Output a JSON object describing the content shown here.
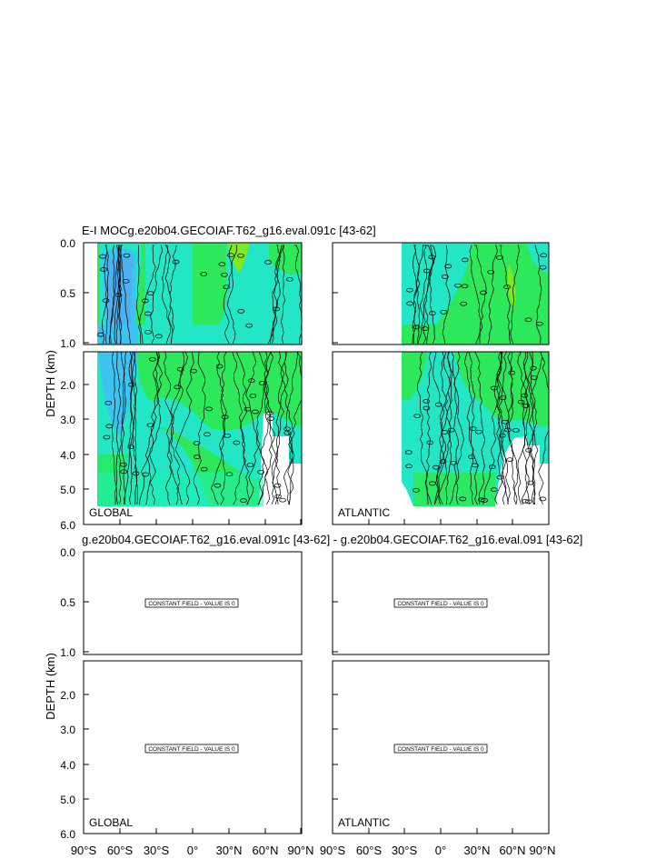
{
  "chart_data": [
    {
      "type": "heatmap",
      "title": "E-I MOCg.e20b04.GECOIAF.T62_g16.eval.091c [43-62]",
      "ylabel": "DEPTH (km)",
      "panels": [
        {
          "label": "GLOBAL",
          "x_range": [
            -90,
            90
          ],
          "data_x_range": [
            -78,
            90
          ],
          "constant": false
        },
        {
          "label": "ATLANTIC",
          "x_range": [
            -90,
            90
          ],
          "data_x_range": [
            -34,
            90
          ],
          "constant": false
        }
      ],
      "y_upper_ticks": [
        "0.0",
        "0.5",
        "1.0"
      ],
      "y_upper_values": [
        0.0,
        0.5,
        1.0
      ],
      "y_lower_ticks": [
        "2.0",
        "3.0",
        "4.0",
        "5.0",
        "6.0"
      ],
      "y_lower_values": [
        2.0,
        3.0,
        4.0,
        5.0,
        6.0
      ],
      "colors": {
        "blue": "#3ec3f0",
        "cyan": "#22e6c6",
        "teal": "#1ff0b0",
        "green": "#2ce85a",
        "yellow_green": "#7fe81e"
      }
    },
    {
      "type": "heatmap",
      "title": "g.e20b04.GECOIAF.T62_g16.eval.091c [43-62] - g.e20b04.GECOIAF.T62_g16.eval.091 [43-62]",
      "ylabel": "DEPTH (km)",
      "panels": [
        {
          "label": "GLOBAL",
          "constant": true,
          "message": "CONSTANT FIELD - VALUE IS 0"
        },
        {
          "label": "ATLANTIC",
          "constant": true,
          "message": "CONSTANT FIELD - VALUE IS 0"
        }
      ],
      "y_upper_ticks": [
        "0.0",
        "0.5",
        "1.0"
      ],
      "y_lower_ticks": [
        "2.0",
        "3.0",
        "4.0",
        "5.0",
        "6.0"
      ],
      "x_ticks": [
        "90°S",
        "60°S",
        "30°S",
        "0°",
        "30°N",
        "60°N",
        "90°N"
      ],
      "x_values": [
        -90,
        -60,
        -30,
        0,
        30,
        60,
        90
      ]
    }
  ]
}
